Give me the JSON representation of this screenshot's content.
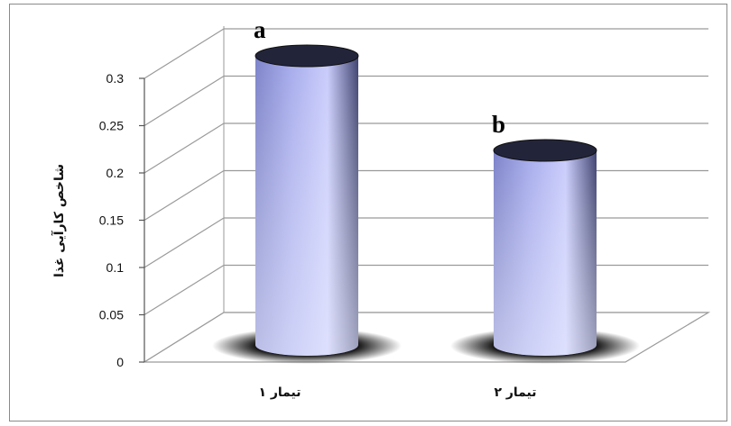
{
  "chart_data": {
    "type": "bar",
    "title": "",
    "xlabel": "",
    "ylabel": "شاخص کارآیی غذا",
    "categories": [
      "تیمار ۱",
      "تیمار ۲"
    ],
    "values": [
      0.3,
      0.2
    ],
    "significance_letters": [
      "a",
      "b"
    ],
    "yticks": [
      0,
      0.05,
      0.1,
      0.15,
      0.2,
      0.25,
      0.3
    ],
    "ylim": [
      0,
      0.3
    ],
    "grid": true,
    "legend": "none",
    "style": "3d-cylinder",
    "colors": {
      "bar": "#8f95d6",
      "bar_highlight": "#dfe3ff",
      "top": "#22253a",
      "grid": "#9a9a9a"
    }
  }
}
